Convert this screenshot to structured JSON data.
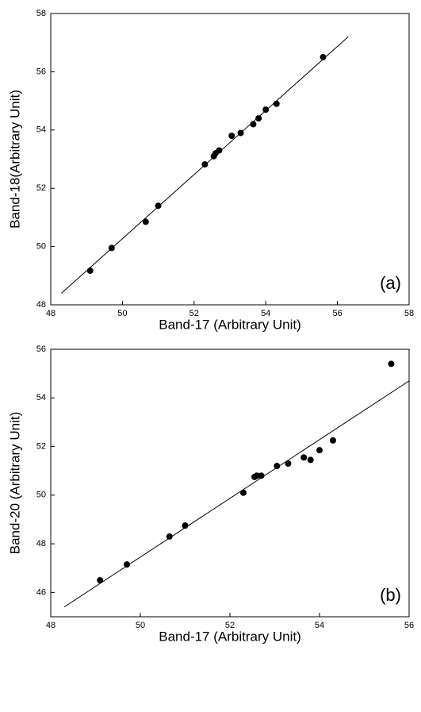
{
  "chart_data": [
    {
      "type": "scatter",
      "x_label": "Band-17 (Arbitrary Unit)",
      "y_label": "Band-18(Arbitrary Unit)",
      "annotation": "(a)",
      "x": [
        49.1,
        49.7,
        50.65,
        51.0,
        52.3,
        52.55,
        52.6,
        52.7,
        53.05,
        53.3,
        53.65,
        53.8,
        54.0,
        54.3,
        55.6
      ],
      "y": [
        49.17,
        49.95,
        50.85,
        51.4,
        52.82,
        53.1,
        53.2,
        53.3,
        53.8,
        53.9,
        54.2,
        54.4,
        54.7,
        54.9,
        56.5
      ],
      "color": "#000000",
      "fit_line": {
        "x": [
          48.3,
          56.3
        ],
        "y": [
          48.4,
          57.2
        ]
      },
      "xlim": [
        48,
        58
      ],
      "xticks": [
        48,
        50,
        52,
        54,
        56,
        58
      ],
      "ylim": [
        48,
        58
      ],
      "yticks": [
        48,
        50,
        52,
        54,
        56,
        58
      ]
    },
    {
      "type": "scatter",
      "x_label": "Band-17 (Arbitrary Unit)",
      "y_label": "Band-20 (Arbitrary Unit)",
      "annotation": "(b)",
      "x": [
        49.1,
        49.7,
        50.65,
        51.0,
        52.3,
        52.55,
        52.6,
        52.7,
        53.05,
        53.3,
        53.65,
        53.8,
        54.0,
        54.3,
        55.6
      ],
      "y": [
        46.5,
        47.15,
        48.3,
        48.75,
        50.1,
        50.75,
        50.8,
        50.8,
        51.2,
        51.3,
        51.55,
        51.45,
        51.85,
        52.25,
        55.4
      ],
      "color": "#000000",
      "fit_line": {
        "x": [
          48.3,
          56
        ],
        "y": [
          45.4,
          54.7
        ]
      },
      "xlim": [
        48,
        56
      ],
      "xticks": [
        48,
        50,
        52,
        54,
        56
      ],
      "ylim": [
        45,
        56
      ],
      "yticks": [
        46,
        48,
        50,
        52,
        54,
        56
      ]
    }
  ]
}
